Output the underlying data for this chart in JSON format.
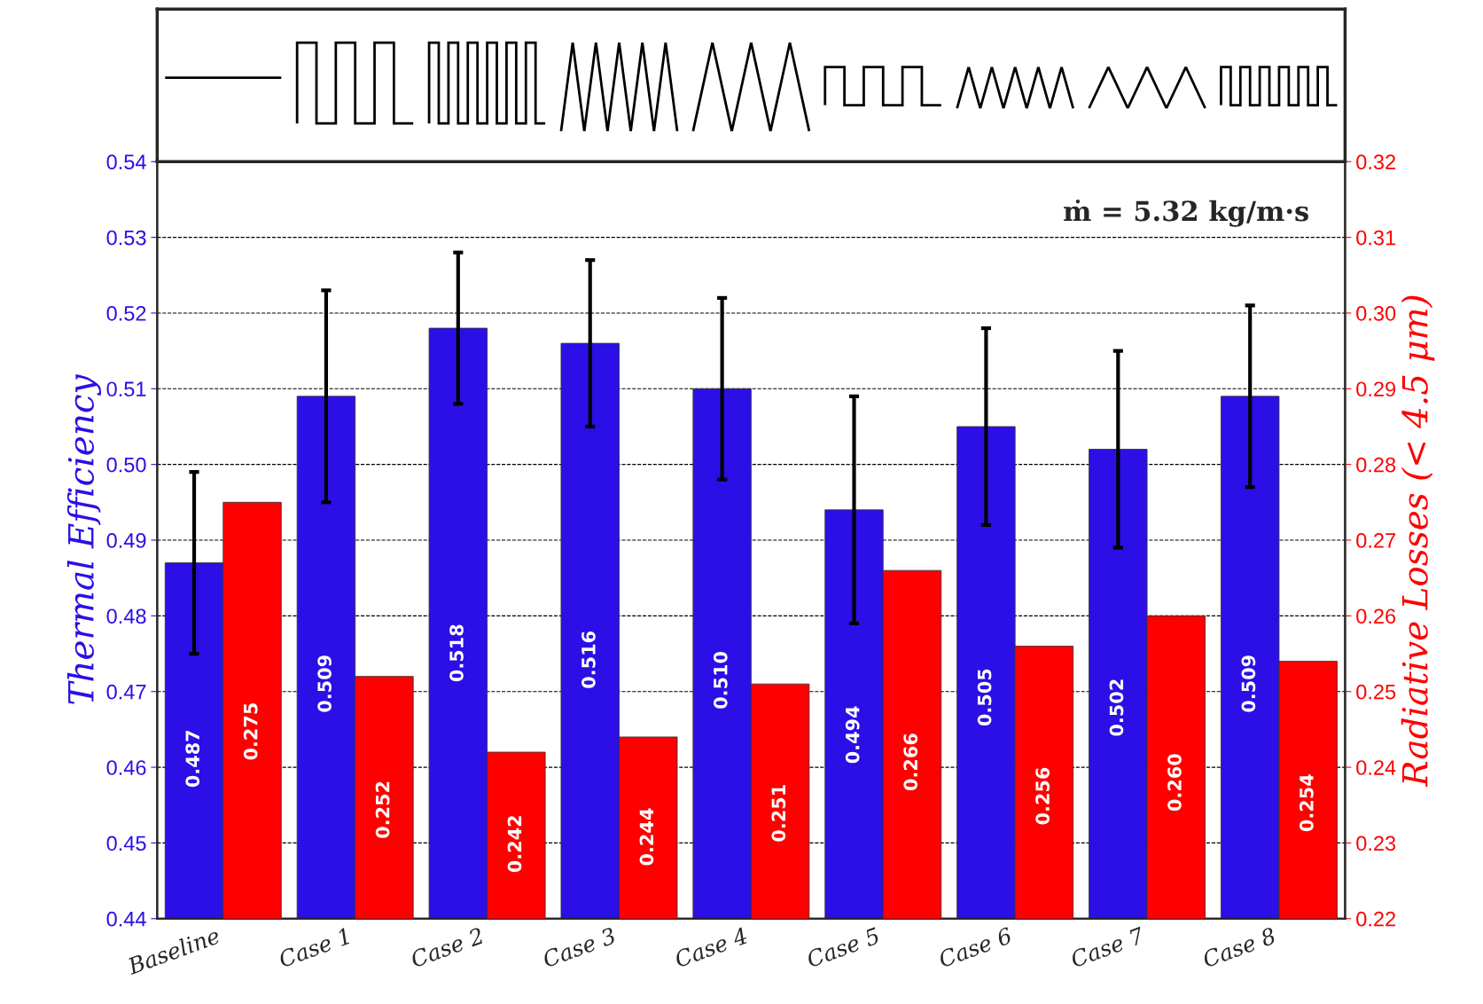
{
  "chart_data": {
    "type": "bar",
    "ylabel": "Thermal Efficiency",
    "y2label": "Radiative Losses (< 4.5 μm)",
    "categories": [
      "Baseline",
      "Case 1",
      "Case 2",
      "Case 3",
      "Case 4",
      "Case 5",
      "Case 6",
      "Case 7",
      "Case 8"
    ],
    "series": [
      {
        "color": "#2b0fe6",
        "values": [
          0.487,
          0.509,
          0.518,
          0.516,
          0.51,
          0.494,
          0.505,
          0.502,
          0.509
        ],
        "errors": [
          0.012,
          0.014,
          0.01,
          0.011,
          0.012,
          0.015,
          0.013,
          0.013,
          0.012
        ],
        "value_labels": [
          "0.487",
          "0.509",
          "0.518",
          "0.516",
          "0.510",
          "0.494",
          "0.505",
          "0.502",
          "0.509"
        ]
      },
      {
        "color": "#ff0000",
        "axis": "y2",
        "values": [
          0.275,
          0.252,
          0.242,
          0.244,
          0.251,
          0.266,
          0.256,
          0.26,
          0.254
        ],
        "value_labels": [
          "0.275",
          "0.252",
          "0.242",
          "0.244",
          "0.251",
          "0.266",
          "0.256",
          "0.260",
          "0.254"
        ]
      }
    ],
    "ylim": [
      0.44,
      0.54
    ],
    "yticks": [
      {
        "value": 0.44,
        "label": "0.44"
      },
      {
        "value": 0.45,
        "label": "0.45"
      },
      {
        "value": 0.46,
        "label": "0.46"
      },
      {
        "value": 0.47,
        "label": "0.47"
      },
      {
        "value": 0.48,
        "label": "0.48"
      },
      {
        "value": 0.49,
        "label": "0.49"
      },
      {
        "value": 0.5,
        "label": "0.50"
      },
      {
        "value": 0.51,
        "label": "0.51"
      },
      {
        "value": 0.52,
        "label": "0.52"
      },
      {
        "value": 0.53,
        "label": "0.53"
      },
      {
        "value": 0.54,
        "label": "0.54"
      }
    ],
    "y2lim": [
      0.22,
      0.32
    ],
    "y2ticks": [
      {
        "value": 0.22,
        "label": "0.22"
      },
      {
        "value": 0.23,
        "label": "0.23"
      },
      {
        "value": 0.24,
        "label": "0.24"
      },
      {
        "value": 0.25,
        "label": "0.25"
      },
      {
        "value": 0.26,
        "label": "0.26"
      },
      {
        "value": 0.27,
        "label": "0.27"
      },
      {
        "value": 0.28,
        "label": "0.28"
      },
      {
        "value": 0.29,
        "label": "0.29"
      },
      {
        "value": 0.3,
        "label": "0.30"
      },
      {
        "value": 0.31,
        "label": "0.31"
      },
      {
        "value": 0.32,
        "label": "0.32"
      }
    ],
    "grid": "y",
    "annotations": [
      "ṁ = 5.32 kg/m·s"
    ]
  }
}
